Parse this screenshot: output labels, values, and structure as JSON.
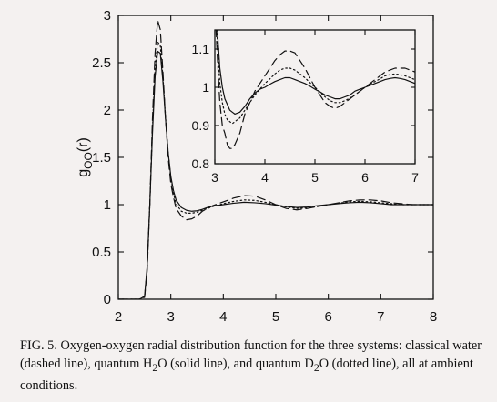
{
  "chart_data": [
    {
      "type": "line",
      "title": "",
      "xlabel": "",
      "ylabel": "g_OO(r)",
      "ylabel_parts": {
        "base": "g",
        "sub": "OO",
        "tail": "(r)"
      },
      "xlim": [
        2,
        8
      ],
      "ylim": [
        0,
        3
      ],
      "xticks": [
        2,
        3,
        4,
        5,
        6,
        7,
        8
      ],
      "yticks": [
        0,
        0.5,
        1,
        1.5,
        2,
        2.5,
        3
      ],
      "ytick_labels": [
        "0",
        "0.5",
        "1",
        "1.5",
        "2",
        "2.5",
        "3"
      ],
      "series": [
        {
          "style": "dashed",
          "x": [
            2.0,
            2.4,
            2.5,
            2.55,
            2.6,
            2.65,
            2.7,
            2.75,
            2.8,
            2.85,
            2.9,
            2.95,
            3.0,
            3.05,
            3.1,
            3.2,
            3.3,
            3.4,
            3.5,
            3.6,
            3.7,
            3.8,
            4.0,
            4.2,
            4.4,
            4.6,
            4.8,
            5.0,
            5.2,
            5.4,
            5.6,
            5.8,
            6.0,
            6.2,
            6.4,
            6.6,
            6.8,
            7.0,
            7.2,
            7.4,
            7.6,
            7.8,
            8.0
          ],
          "y": [
            0,
            0,
            0.02,
            0.3,
            1.0,
            1.9,
            2.6,
            2.95,
            2.85,
            2.4,
            1.9,
            1.5,
            1.22,
            1.08,
            0.96,
            0.88,
            0.84,
            0.85,
            0.88,
            0.93,
            0.96,
            0.99,
            1.03,
            1.07,
            1.095,
            1.09,
            1.05,
            1.0,
            0.96,
            0.945,
            0.96,
            0.98,
            1.0,
            1.02,
            1.04,
            1.05,
            1.05,
            1.04,
            1.02,
            1.01,
            1.0,
            1.0,
            1.0
          ]
        },
        {
          "style": "solid",
          "x": [
            2.0,
            2.4,
            2.5,
            2.55,
            2.6,
            2.65,
            2.7,
            2.75,
            2.8,
            2.85,
            2.9,
            2.95,
            3.0,
            3.05,
            3.1,
            3.2,
            3.3,
            3.4,
            3.5,
            3.6,
            3.7,
            3.8,
            4.0,
            4.2,
            4.4,
            4.6,
            4.8,
            5.0,
            5.2,
            5.4,
            5.6,
            5.8,
            6.0,
            6.2,
            6.4,
            6.6,
            6.8,
            7.0,
            7.2,
            7.4,
            7.6,
            7.8,
            8.0
          ],
          "y": [
            0,
            0,
            0.03,
            0.35,
            1.0,
            1.75,
            2.35,
            2.62,
            2.6,
            2.3,
            1.9,
            1.55,
            1.3,
            1.15,
            1.05,
            0.97,
            0.94,
            0.93,
            0.935,
            0.95,
            0.97,
            0.985,
            1.0,
            1.015,
            1.025,
            1.02,
            1.01,
            0.995,
            0.98,
            0.97,
            0.975,
            0.99,
            1.0,
            1.01,
            1.02,
            1.025,
            1.02,
            1.01,
            1.0,
            1.0,
            1.0,
            1.0,
            1.0
          ]
        },
        {
          "style": "dotted",
          "x": [
            2.0,
            2.4,
            2.5,
            2.55,
            2.6,
            2.65,
            2.7,
            2.75,
            2.8,
            2.85,
            2.9,
            2.95,
            3.0,
            3.05,
            3.1,
            3.2,
            3.3,
            3.4,
            3.5,
            3.6,
            3.7,
            3.8,
            4.0,
            4.2,
            4.4,
            4.6,
            4.8,
            5.0,
            5.2,
            5.4,
            5.6,
            5.8,
            6.0,
            6.2,
            6.4,
            6.6,
            6.8,
            7.0,
            7.2,
            7.4,
            7.6,
            7.8,
            8.0
          ],
          "y": [
            0,
            0,
            0.03,
            0.33,
            1.0,
            1.8,
            2.45,
            2.72,
            2.68,
            2.35,
            1.92,
            1.55,
            1.28,
            1.12,
            1.01,
            0.93,
            0.91,
            0.91,
            0.92,
            0.94,
            0.96,
            0.98,
            1.01,
            1.035,
            1.05,
            1.045,
            1.025,
            1.0,
            0.975,
            0.96,
            0.965,
            0.98,
            1.0,
            1.015,
            1.03,
            1.035,
            1.03,
            1.02,
            1.01,
            1.0,
            1.0,
            1.0,
            1.0
          ]
        }
      ]
    },
    {
      "type": "line",
      "title": "",
      "xlabel": "",
      "ylabel": "",
      "xlim": [
        3,
        7
      ],
      "ylim": [
        0.8,
        1.15
      ],
      "xticks": [
        3,
        4,
        5,
        6,
        7
      ],
      "yticks": [
        0.8,
        0.9,
        1,
        1.1
      ],
      "ytick_labels": [
        "0.8",
        "0.9",
        "1",
        "1.1"
      ],
      "series": [
        {
          "style": "dashed",
          "x": [
            3.0,
            3.05,
            3.1,
            3.15,
            3.2,
            3.25,
            3.3,
            3.35,
            3.4,
            3.5,
            3.6,
            3.7,
            3.8,
            3.9,
            4.0,
            4.1,
            4.2,
            4.3,
            4.4,
            4.5,
            4.6,
            4.7,
            4.8,
            4.9,
            5.0,
            5.1,
            5.2,
            5.3,
            5.4,
            5.5,
            5.6,
            5.7,
            5.8,
            5.9,
            6.0,
            6.1,
            6.2,
            6.3,
            6.4,
            6.5,
            6.6,
            6.7,
            6.8,
            6.9,
            7.0
          ],
          "y": [
            1.22,
            1.08,
            0.96,
            0.9,
            0.88,
            0.85,
            0.84,
            0.84,
            0.85,
            0.88,
            0.93,
            0.96,
            0.99,
            1.01,
            1.03,
            1.05,
            1.07,
            1.085,
            1.095,
            1.095,
            1.09,
            1.07,
            1.05,
            1.025,
            1.0,
            0.98,
            0.96,
            0.95,
            0.945,
            0.95,
            0.96,
            0.97,
            0.98,
            0.99,
            1.0,
            1.01,
            1.02,
            1.03,
            1.04,
            1.045,
            1.05,
            1.05,
            1.05,
            1.045,
            1.04
          ]
        },
        {
          "style": "solid",
          "x": [
            3.0,
            3.05,
            3.1,
            3.15,
            3.2,
            3.25,
            3.3,
            3.35,
            3.4,
            3.5,
            3.6,
            3.7,
            3.8,
            3.9,
            4.0,
            4.1,
            4.2,
            4.3,
            4.4,
            4.5,
            4.6,
            4.7,
            4.8,
            4.9,
            5.0,
            5.1,
            5.2,
            5.3,
            5.4,
            5.5,
            5.6,
            5.7,
            5.8,
            5.9,
            6.0,
            6.1,
            6.2,
            6.3,
            6.4,
            6.5,
            6.6,
            6.7,
            6.8,
            6.9,
            7.0
          ],
          "y": [
            1.3,
            1.15,
            1.05,
            1.0,
            0.97,
            0.955,
            0.94,
            0.935,
            0.93,
            0.935,
            0.95,
            0.97,
            0.985,
            0.995,
            1.0,
            1.008,
            1.015,
            1.02,
            1.025,
            1.025,
            1.02,
            1.015,
            1.01,
            1.003,
            0.995,
            0.988,
            0.98,
            0.975,
            0.97,
            0.97,
            0.975,
            0.98,
            0.99,
            0.995,
            1.0,
            1.005,
            1.01,
            1.015,
            1.02,
            1.023,
            1.025,
            1.023,
            1.02,
            1.015,
            1.01
          ]
        },
        {
          "style": "dotted",
          "x": [
            3.0,
            3.05,
            3.1,
            3.15,
            3.2,
            3.25,
            3.3,
            3.35,
            3.4,
            3.5,
            3.6,
            3.7,
            3.8,
            3.9,
            4.0,
            4.1,
            4.2,
            4.3,
            4.4,
            4.5,
            4.6,
            4.7,
            4.8,
            4.9,
            5.0,
            5.1,
            5.2,
            5.3,
            5.4,
            5.5,
            5.6,
            5.7,
            5.8,
            5.9,
            6.0,
            6.1,
            6.2,
            6.3,
            6.4,
            6.5,
            6.6,
            6.7,
            6.8,
            6.9,
            7.0
          ],
          "y": [
            1.28,
            1.12,
            1.01,
            0.96,
            0.93,
            0.915,
            0.91,
            0.905,
            0.91,
            0.92,
            0.94,
            0.96,
            0.98,
            0.995,
            1.01,
            1.022,
            1.035,
            1.045,
            1.05,
            1.05,
            1.045,
            1.035,
            1.025,
            1.012,
            1.0,
            0.988,
            0.975,
            0.965,
            0.96,
            0.96,
            0.965,
            0.972,
            0.98,
            0.99,
            1.0,
            1.008,
            1.015,
            1.022,
            1.03,
            1.033,
            1.035,
            1.033,
            1.03,
            1.025,
            1.02
          ]
        }
      ]
    }
  ],
  "caption": {
    "part1": "FIG. 5. Oxygen-oxygen radial distribution function for the three systems: classical water (dashed line), quantum H",
    "sub1": "2",
    "part2": "O (solid line), and quantum D",
    "sub2": "2",
    "part3": "O (dotted line), all at ambient conditions."
  }
}
